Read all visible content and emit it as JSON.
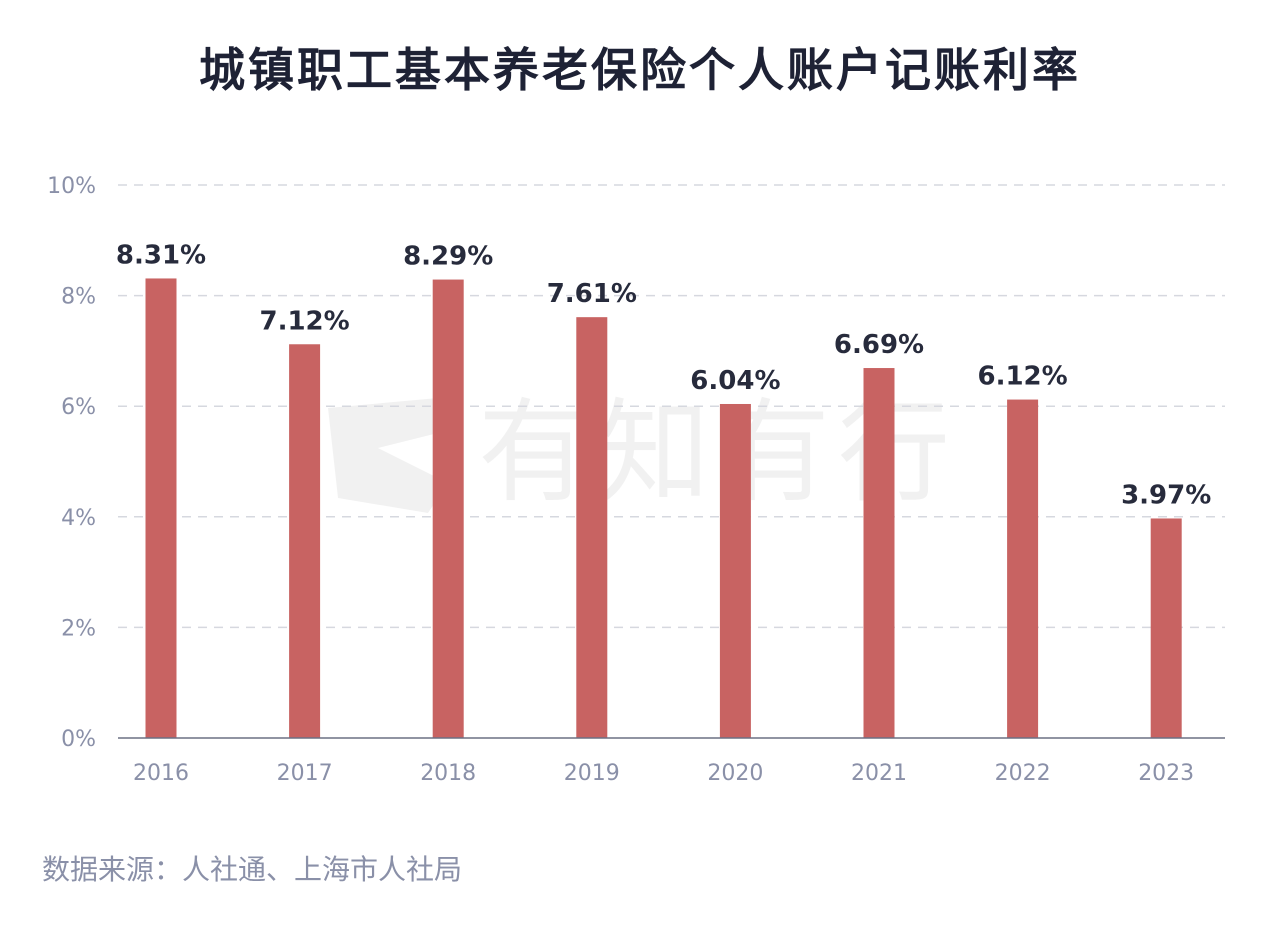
{
  "chart_data": {
    "type": "bar",
    "title": "城镇职工基本养老保险个人账户记账利率",
    "categories": [
      "2016",
      "2017",
      "2018",
      "2019",
      "2020",
      "2021",
      "2022",
      "2023"
    ],
    "values": [
      8.31,
      7.12,
      8.29,
      7.61,
      6.04,
      6.69,
      6.12,
      3.97
    ],
    "value_labels": [
      "8.31%",
      "7.12%",
      "8.29%",
      "7.61%",
      "6.04%",
      "6.69%",
      "6.12%",
      "3.97%"
    ],
    "ylim": [
      0,
      10
    ],
    "yticks": [
      0,
      2,
      4,
      6,
      8,
      10
    ],
    "ytick_labels": [
      "0%",
      "2%",
      "4%",
      "6%",
      "8%",
      "10%"
    ],
    "xlabel": "",
    "ylabel": "",
    "grid": true,
    "legend": "none",
    "colors": {
      "bar": "#c86362",
      "title": "#1e2235",
      "tick": "#8a90a8",
      "value_label": "#272b3c",
      "grid": "#d6d8df",
      "axis": "#6b7084"
    }
  },
  "watermark": {
    "text": "有知有行",
    "icon": "youzhiyouxing-logo-icon"
  },
  "source": "数据来源：人社通、上海市人社局"
}
